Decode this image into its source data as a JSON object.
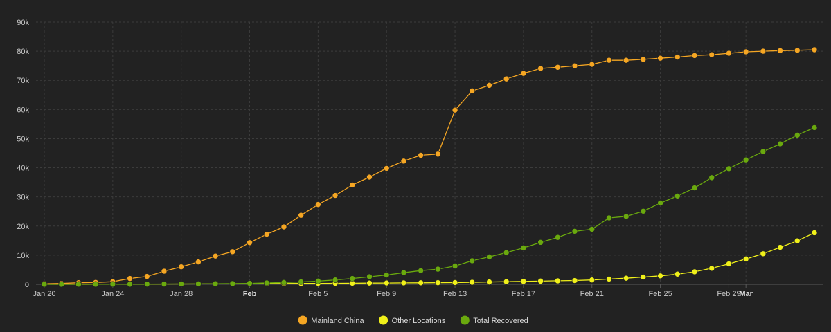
{
  "chart_data": {
    "type": "line",
    "title": "",
    "xlabel": "",
    "ylabel": "",
    "grid": true,
    "legend_position": "bottom-center",
    "ylim": [
      0,
      90000
    ],
    "y_ticks": [
      0,
      10000,
      20000,
      30000,
      40000,
      50000,
      60000,
      70000,
      80000,
      90000
    ],
    "y_tick_labels": [
      "0",
      "10k",
      "20k",
      "30k",
      "40k",
      "50k",
      "60k",
      "70k",
      "80k",
      "90k"
    ],
    "x": [
      "Jan 20",
      "Jan 21",
      "Jan 22",
      "Jan 23",
      "Jan 24",
      "Jan 25",
      "Jan 26",
      "Jan 27",
      "Jan 28",
      "Jan 29",
      "Jan 30",
      "Jan 31",
      "Feb 1",
      "Feb 2",
      "Feb 3",
      "Feb 4",
      "Feb 5",
      "Feb 6",
      "Feb 7",
      "Feb 8",
      "Feb 9",
      "Feb 10",
      "Feb 11",
      "Feb 12",
      "Feb 13",
      "Feb 14",
      "Feb 15",
      "Feb 16",
      "Feb 17",
      "Feb 18",
      "Feb 19",
      "Feb 20",
      "Feb 21",
      "Feb 22",
      "Feb 23",
      "Feb 24",
      "Feb 25",
      "Feb 26",
      "Feb 27",
      "Feb 28",
      "Feb 29",
      "Mar 1",
      "Mar 2",
      "Mar 3",
      "Mar 4",
      "Mar 5"
    ],
    "x_tick_labels": [
      {
        "label": "Jan 20",
        "date": "Jan 20",
        "bold": false
      },
      {
        "label": "Jan 24",
        "date": "Jan 24",
        "bold": false
      },
      {
        "label": "Jan 28",
        "date": "Jan 28",
        "bold": false
      },
      {
        "label": "Feb",
        "date": "Feb 1",
        "bold": true
      },
      {
        "label": "Feb 5",
        "date": "Feb 5",
        "bold": false
      },
      {
        "label": "Feb 9",
        "date": "Feb 9",
        "bold": false
      },
      {
        "label": "Feb 13",
        "date": "Feb 13",
        "bold": false
      },
      {
        "label": "Feb 17",
        "date": "Feb 17",
        "bold": false
      },
      {
        "label": "Feb 21",
        "date": "Feb 21",
        "bold": false
      },
      {
        "label": "Feb 25",
        "date": "Feb 25",
        "bold": false
      },
      {
        "label": "Feb 29",
        "date": "Feb 29",
        "bold": false
      },
      {
        "label": "Mar",
        "date": "Mar 1",
        "bold": true
      }
    ],
    "series": [
      {
        "name": "Mainland China",
        "color": "#f5a623",
        "values": [
          200,
          300,
          550,
          650,
          900,
          2000,
          2700,
          4500,
          6000,
          7700,
          9700,
          11200,
          14300,
          17200,
          19700,
          23700,
          27400,
          30500,
          34100,
          36800,
          39800,
          42300,
          44300,
          44700,
          59800,
          66400,
          68300,
          70500,
          72400,
          74100,
          74500,
          75000,
          75500,
          76900,
          76900,
          77200,
          77600,
          78000,
          78500,
          78800,
          79300,
          79800,
          80000,
          80200,
          80300,
          80500
        ]
      },
      {
        "name": "Other Locations",
        "color": "#f0f01a",
        "values": [
          0,
          5,
          10,
          20,
          40,
          60,
          80,
          100,
          130,
          150,
          180,
          200,
          230,
          250,
          280,
          300,
          330,
          350,
          380,
          420,
          460,
          500,
          530,
          560,
          600,
          700,
          800,
          900,
          1000,
          1100,
          1200,
          1300,
          1500,
          1800,
          2100,
          2500,
          2900,
          3500,
          4300,
          5500,
          7000,
          8700,
          10500,
          12700,
          14900,
          17700
        ]
      },
      {
        "name": "Total Recovered",
        "color": "#6aa90e",
        "values": [
          25,
          30,
          35,
          40,
          50,
          60,
          80,
          110,
          130,
          140,
          180,
          250,
          330,
          480,
          630,
          840,
          1100,
          1500,
          2000,
          2600,
          3200,
          4000,
          4700,
          5200,
          6300,
          8100,
          9400,
          10900,
          12500,
          14400,
          16100,
          18200,
          18900,
          22800,
          23300,
          25100,
          27900,
          30300,
          33100,
          36600,
          39700,
          42700,
          45600,
          48200,
          51200,
          53800
        ]
      }
    ]
  }
}
